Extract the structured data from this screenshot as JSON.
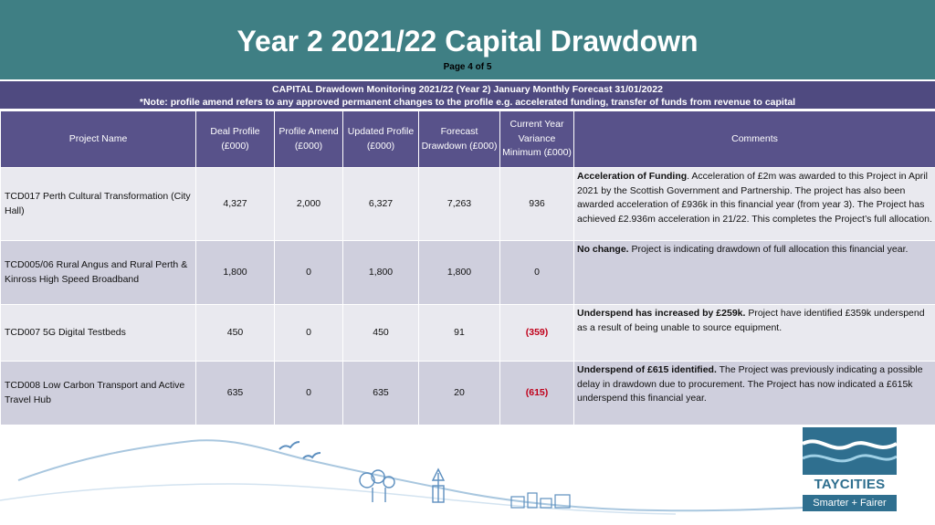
{
  "header": {
    "title": "Year 2 2021/22 Capital Drawdown",
    "page": "Page 4 of 5"
  },
  "subheader": {
    "line1": "CAPITAL Drawdown Monitoring 2021/22 (Year 2) January Monthly Forecast 31/01/2022",
    "line2": "*Note: profile amend refers to any approved permanent changes to the profile e.g. accelerated funding, transfer of funds from revenue to capital"
  },
  "table": {
    "columns": {
      "name": "Project Name",
      "deal": "Deal Profile (£000)",
      "amend": "Profile Amend (£000)",
      "updated": "Updated Profile (£000)",
      "forecast": "Forecast Drawdown (£000)",
      "variance": "Current Year Variance Minimum (£000)",
      "comments": "Comments"
    },
    "rows": [
      {
        "name": "TCD017 Perth Cultural Transformation (City Hall)",
        "deal": "4,327",
        "amend": "2,000",
        "updated": "6,327",
        "forecast": "7,263",
        "variance": "936",
        "comment_lead": "Acceleration of Funding",
        "comment_rest": ". Acceleration of £2m was awarded to this Project in April 2021 by the Scottish Government and Partnership. The project has also  been awarded acceleration of £936k in this financial year (from year 3). The Project has achieved £2.936m acceleration in 21/22.  This completes the Project’s full allocation."
      },
      {
        "name": "TCD005/06 Rural Angus and Rural Perth & Kinross High Speed Broadband",
        "deal": "1,800",
        "amend": "0",
        "updated": "1,800",
        "forecast": "1,800",
        "variance": "0",
        "comment_lead": "No change.",
        "comment_rest": " Project is indicating drawdown of full allocation this financial year."
      },
      {
        "name": "TCD007 5G Digital Testbeds",
        "deal": "450",
        "amend": "0",
        "updated": "450",
        "forecast": "91",
        "variance": "(359)",
        "comment_lead": "Underspend has increased by £259k.",
        "comment_rest": " Project have identified £359k underspend as a result of being unable to source equipment."
      },
      {
        "name": "TCD008 Low Carbon Transport and Active Travel Hub",
        "deal": "635",
        "amend": "0",
        "updated": "635",
        "forecast": "20",
        "variance": "(615)",
        "comment_lead": "Underspend of £615 identified.",
        "comment_rest": " The Project was previously indicating a possible delay in drawdown due to procurement. The Project has now indicated a £615k underspend this financial year."
      }
    ]
  },
  "logo": {
    "name": "TAYCITIES",
    "tagline": "Smarter + Fairer"
  },
  "colors": {
    "header_bg": "#3f7f84",
    "table_header_bg": "#58528a",
    "row_light": "#e9e9ef",
    "row_dark": "#cfcfdd",
    "negative": "#c0001a",
    "logo_blue": "#2f6f8f"
  }
}
